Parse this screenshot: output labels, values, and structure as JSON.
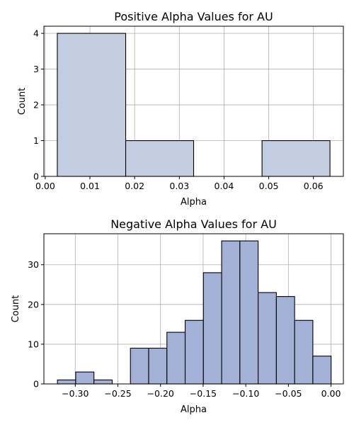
{
  "chart_data": [
    {
      "type": "bar",
      "title": "Positive Alpha Values for AU",
      "xlabel": "Alpha",
      "ylabel": "Count",
      "bar_color": "#c3cde2",
      "grid": true,
      "xlim": [
        -0.0003,
        0.0667
      ],
      "ylim": [
        0,
        4.2
      ],
      "xticks": [
        0.0,
        0.01,
        0.02,
        0.03,
        0.04,
        0.05,
        0.06
      ],
      "xtick_labels": [
        "0.00",
        "0.01",
        "0.02",
        "0.03",
        "0.04",
        "0.05",
        "0.06"
      ],
      "yticks": [
        0,
        1,
        2,
        3,
        4
      ],
      "ytick_labels": [
        "0",
        "1",
        "2",
        "3",
        "4"
      ],
      "bins": [
        {
          "x0": 0.0027,
          "x1": 0.018,
          "count": 4
        },
        {
          "x0": 0.018,
          "x1": 0.0332,
          "count": 1
        },
        {
          "x0": 0.0332,
          "x1": 0.0485,
          "count": 0
        },
        {
          "x0": 0.0485,
          "x1": 0.0637,
          "count": 1
        }
      ]
    },
    {
      "type": "bar",
      "title": "Negative Alpha Values for AU",
      "xlabel": "Alpha",
      "ylabel": "Count",
      "bar_color": "#a4b1d6",
      "grid": true,
      "xlim": [
        -0.3368,
        0.0145
      ],
      "ylim": [
        0,
        37.8
      ],
      "xticks": [
        -0.3,
        -0.25,
        -0.2,
        -0.15,
        -0.1,
        -0.05,
        0.0
      ],
      "xtick_labels": [
        "−0.30",
        "−0.25",
        "−0.20",
        "−0.15",
        "−0.10",
        "−0.05",
        "0.00"
      ],
      "yticks": [
        0,
        10,
        20,
        30
      ],
      "ytick_labels": [
        "0",
        "10",
        "20",
        "30"
      ],
      "bins": [
        {
          "x0": -0.3209,
          "x1": -0.2995,
          "count": 1
        },
        {
          "x0": -0.2995,
          "x1": -0.2781,
          "count": 3
        },
        {
          "x0": -0.2781,
          "x1": -0.2567,
          "count": 1
        },
        {
          "x0": -0.2567,
          "x1": -0.2353,
          "count": 0
        },
        {
          "x0": -0.2353,
          "x1": -0.2139,
          "count": 9
        },
        {
          "x0": -0.2139,
          "x1": -0.1925,
          "count": 9
        },
        {
          "x0": -0.1925,
          "x1": -0.1711,
          "count": 13
        },
        {
          "x0": -0.1711,
          "x1": -0.1497,
          "count": 16
        },
        {
          "x0": -0.1497,
          "x1": -0.1283,
          "count": 28
        },
        {
          "x0": -0.1283,
          "x1": -0.1069,
          "count": 36
        },
        {
          "x0": -0.1069,
          "x1": -0.0855,
          "count": 36
        },
        {
          "x0": -0.0855,
          "x1": -0.0641,
          "count": 23
        },
        {
          "x0": -0.0641,
          "x1": -0.0427,
          "count": 22
        },
        {
          "x0": -0.0427,
          "x1": -0.0213,
          "count": 16
        },
        {
          "x0": -0.0213,
          "x1": 0.0001,
          "count": 7
        }
      ]
    }
  ]
}
